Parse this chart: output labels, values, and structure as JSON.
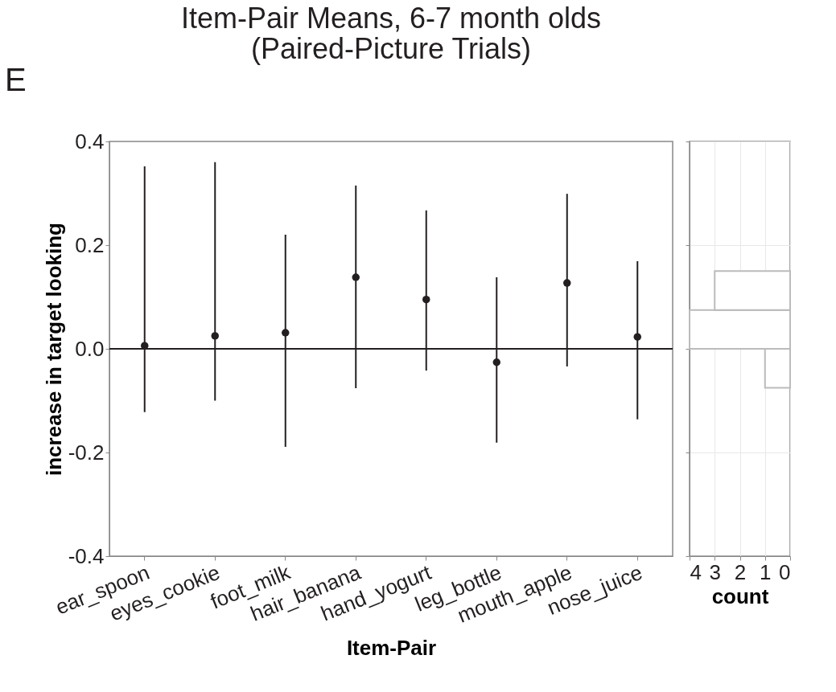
{
  "chart_data": [
    {
      "type": "scatter",
      "title": [
        "Item-Pair Means, 6-7 month olds",
        "(Paired-Picture Trials)"
      ],
      "xlabel": "Item-Pair",
      "ylabel": "increase in target looking",
      "annotations": [
        "E"
      ],
      "categories": [
        "ear_spoon",
        "eyes_cookie",
        "foot_milk",
        "hair_banana",
        "hand_yogurt",
        "leg_bottle",
        "mouth_apple",
        "nose_juice"
      ],
      "series": [
        {
          "color": "#231f20",
          "values": [
            0.006,
            0.025,
            0.031,
            0.138,
            0.095,
            -0.026,
            0.127,
            0.023
          ],
          "errors": [
            [
              -0.122,
              0.352
            ],
            [
              -0.1,
              0.36
            ],
            [
              -0.189,
              0.22
            ],
            [
              -0.076,
              0.315
            ],
            [
              -0.042,
              0.267
            ],
            [
              -0.181,
              0.138
            ],
            [
              -0.034,
              0.299
            ],
            [
              -0.136,
              0.169
            ]
          ]
        }
      ],
      "ylim": [
        -0.4,
        0.4
      ],
      "yticks": [
        {
          "value": -0.4,
          "label": "-0.4"
        },
        {
          "value": -0.2,
          "label": "-0.2"
        },
        {
          "value": 0,
          "label": "0.0"
        },
        {
          "value": 0.2,
          "label": "0.2"
        },
        {
          "value": 0.4,
          "label": "0.4"
        }
      ],
      "ref_lines": [
        {
          "axis": "y",
          "value": 0,
          "color": "#231f20"
        }
      ],
      "grid": false,
      "marker": "circle"
    },
    {
      "type": "histogram",
      "orientation": "horizontal",
      "xlabel": "count",
      "bins": [
        -0.075,
        0,
        0.075,
        0.15
      ],
      "values": [
        1,
        4,
        3
      ],
      "color": "#ffffff",
      "xlim": [
        4,
        0
      ],
      "xticks": [
        4,
        3,
        2,
        1,
        0
      ],
      "ylim": [
        -0.4,
        0.4
      ],
      "yticks": [
        -0.4,
        -0.2,
        0,
        0.2,
        0.4
      ],
      "tick_labels": "x",
      "grid": true
    }
  ]
}
